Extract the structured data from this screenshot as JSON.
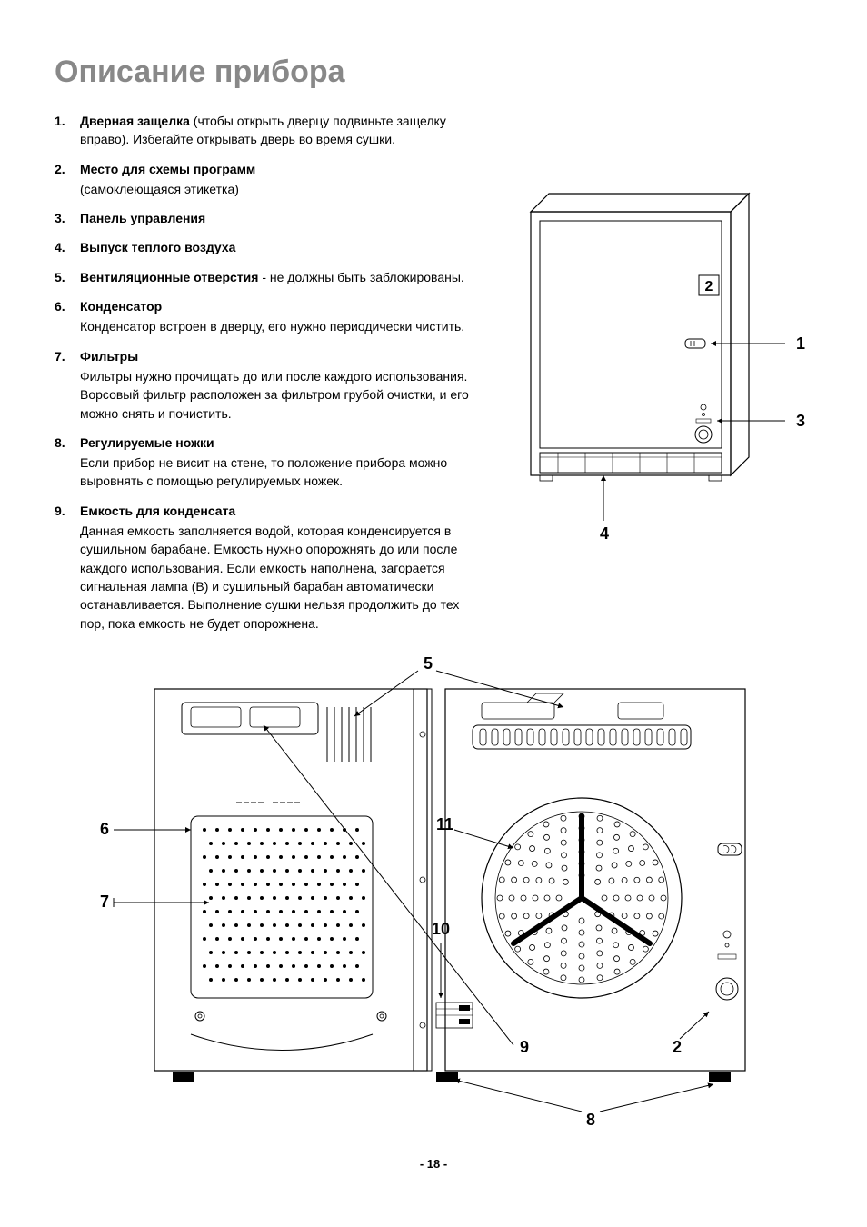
{
  "title": "Описание прибора",
  "page_number": "- 18 -",
  "colors": {
    "title_gray": "#888888",
    "text": "#000000",
    "line": "#000000",
    "bg": "#ffffff"
  },
  "typography": {
    "title_fontsize": 34,
    "body_fontsize": 14,
    "callout_fontsize": 18
  },
  "list": [
    {
      "num": "1.",
      "term": "Дверная защелка",
      "inline_desc": " (чтобы открыть дверцу подвиньте защелку вправо). Избегайте открывать дверь во время сушки.",
      "sub": ""
    },
    {
      "num": "2.",
      "term": "Место для схемы программ",
      "inline_desc": "",
      "sub": "(самоклеющаяся этикетка)"
    },
    {
      "num": "3.",
      "term": "Панель управления",
      "inline_desc": "",
      "sub": ""
    },
    {
      "num": "4.",
      "term": "Выпуск теплого воздуха",
      "inline_desc": "",
      "sub": ""
    },
    {
      "num": "5.",
      "term": "Вентиляционные отверстия",
      "inline_desc": " - не должны быть заблокированы.",
      "sub": ""
    },
    {
      "num": "6.",
      "term": "Конденсатор",
      "inline_desc": "",
      "sub": "Конденсатор встроен в дверцу, его нужно периодически чистить."
    },
    {
      "num": "7.",
      "term": "Фильтры",
      "inline_desc": "",
      "sub": "Фильтры нужно прочищать до или после каждого использования. Ворсовый фильтр расположен за фильтром грубой очистки, и его можно снять и почистить."
    },
    {
      "num": "8.",
      "term": "Регулируемые ножки",
      "inline_desc": "",
      "sub": "Если прибор не висит на стене, то положение прибора можно выровнять с помощью регулируемых ножек."
    },
    {
      "num": "9.",
      "term": "Емкость для конденсата",
      "inline_desc": "",
      "sub": "Данная емкость заполняется водой, которая конденсируется в сушильном барабане. Емкость нужно опорожнять до или после каждого использования. Если емкость наполнена, загорается сигнальная лампа (B) и сушильный барабан автоматически останавливается. Выполнение сушки нельзя продолжить до тех пор, пока емкость не будет опорожнена."
    }
  ],
  "figure_top": {
    "callouts": [
      "1",
      "2",
      "3",
      "4"
    ]
  },
  "figure_bottom": {
    "callouts": [
      "2",
      "5",
      "6",
      "7",
      "8",
      "9",
      "10",
      "11"
    ]
  }
}
